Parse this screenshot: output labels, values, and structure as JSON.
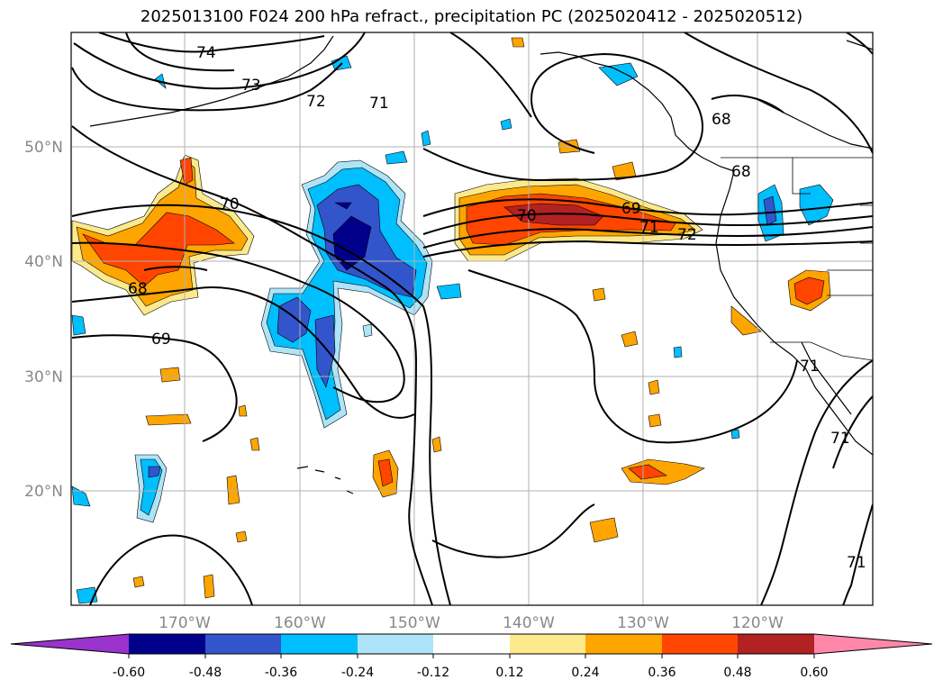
{
  "title": "2025013100 F024 200 hPa refract., precipitation PC (2025020412 - 2025020512)",
  "lon_ticks": [
    "170°W",
    "160°W",
    "150°W",
    "140°W",
    "130°W",
    "120°W"
  ],
  "lat_ticks": [
    "50°N",
    "40°N",
    "30°N",
    "20°N"
  ],
  "colorbar": {
    "ticks": [
      "-0.60",
      "-0.48",
      "-0.36",
      "-0.24",
      "-0.12",
      "0.12",
      "0.24",
      "0.36",
      "0.48",
      "0.60"
    ],
    "colors": [
      "#9933cc",
      "#00008b",
      "#3355cc",
      "#00bfff",
      "#aee4f8",
      "#ffffff",
      "#fce98c",
      "#ffa500",
      "#ff4500",
      "#b22222",
      "#ff88aa"
    ]
  },
  "contour_labels": [
    {
      "text": "74"
    },
    {
      "text": "73"
    },
    {
      "text": "72"
    },
    {
      "text": "71"
    },
    {
      "text": "70"
    },
    {
      "text": "68"
    },
    {
      "text": "69"
    },
    {
      "text": "70"
    },
    {
      "text": "69"
    },
    {
      "text": "71"
    },
    {
      "text": "72"
    },
    {
      "text": "68"
    },
    {
      "text": "68"
    },
    {
      "text": "71"
    },
    {
      "text": "71"
    },
    {
      "text": "71"
    }
  ]
}
